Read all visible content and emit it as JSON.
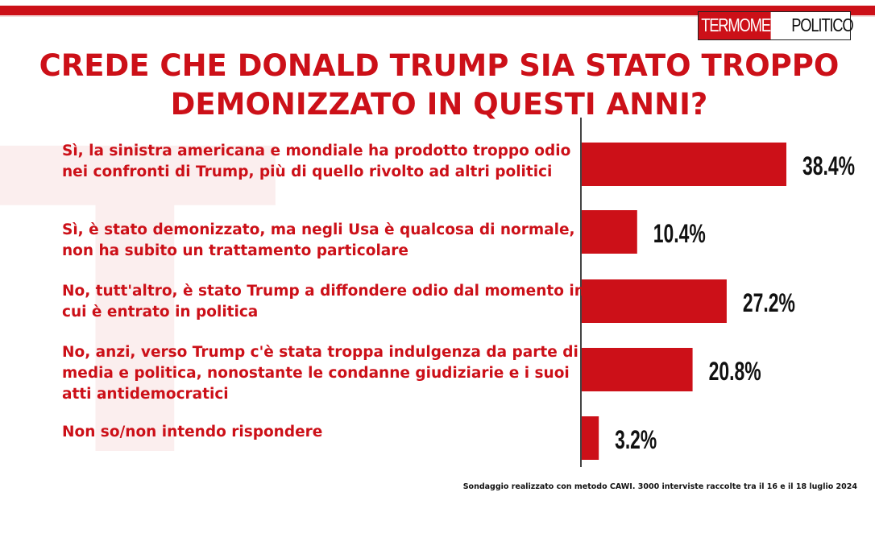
{
  "brand": {
    "logo_part1": "TERMOMETRO",
    "logo_part2": "POLITICO",
    "accent": "#cc1018"
  },
  "header": {
    "title_line1": "CREDE CHE DONALD TRUMP SIA STATO TROPPO",
    "title_line2": "DEMONIZZATO IN QUESTI ANNI?"
  },
  "chart_data": {
    "type": "bar",
    "orientation": "horizontal",
    "categories": [
      "Sì, la sinistra americana e mondiale ha prodotto troppo odio nei confronti di Trump, più di quello rivolto ad altri politici",
      "Sì, è stato demonizzato, ma negli Usa è qualcosa di normale, non ha subito un trattamento particolare",
      "No, tutt'altro, è stato Trump a diffondere odio dal momento in cui è entrato in politica",
      "No, anzi, verso Trump c'è stata troppa indulgenza da parte di media e politica, nonostante le condanne giudiziarie e i suoi atti antidemocratici",
      "Non so/non intendo rispondere"
    ],
    "values": [
      38.4,
      10.4,
      27.2,
      20.8,
      3.2
    ],
    "value_labels": [
      "38.4%",
      "10.4%",
      "27.2%",
      "20.8%",
      "3.2%"
    ],
    "title": "CREDE CHE DONALD TRUMP SIA STATO TROPPO DEMONIZZATO IN QUESTI ANNI?",
    "bar_color": "#cc1018",
    "grid": false
  },
  "footer": {
    "note": "Sondaggio realizzato con metodo CAWI. 3000 interviste raccolte tra il 16 e il 18 luglio 2024"
  }
}
